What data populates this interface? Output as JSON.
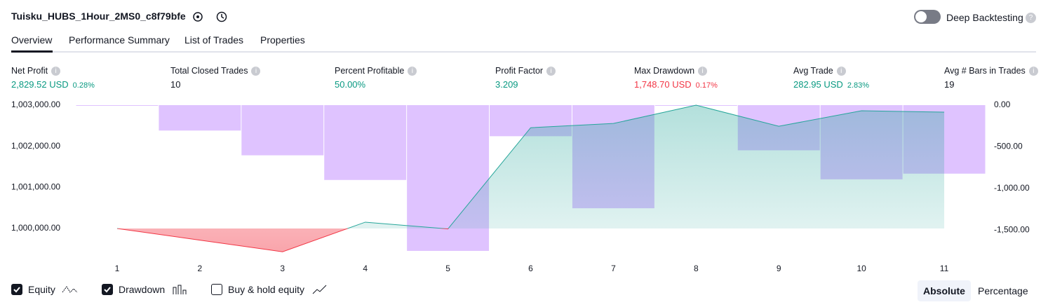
{
  "header": {
    "title": "Tuisku_HUBS_1Hour_2MS0_c8f79bfe",
    "toggle": "Deep Backtesting"
  },
  "tabs": [
    "Overview",
    "Performance Summary",
    "List of Trades",
    "Properties"
  ],
  "metrics": [
    {
      "label": "Net Profit",
      "value": "2,829.52 USD",
      "percent": "0.28%",
      "color": "#089981"
    },
    {
      "label": "Total Closed Trades",
      "value": "10",
      "color": "#131722"
    },
    {
      "label": "Percent Profitable",
      "value": "50.00%",
      "color": "#089981"
    },
    {
      "label": "Profit Factor",
      "value": "3.209",
      "color": "#089981"
    },
    {
      "label": "Max Drawdown",
      "value": "1,748.70 USD",
      "percent": "0.17%",
      "color": "#f23645"
    },
    {
      "label": "Avg Trade",
      "value": "282.95 USD",
      "percent": "2.83%",
      "color": "#089981"
    },
    {
      "label": "Avg # Bars in Trades",
      "value": "19",
      "color": "#131722"
    }
  ],
  "chart_data": {
    "type": "equity-drawdown",
    "x": [
      1,
      2,
      3,
      4,
      5,
      6,
      7,
      8,
      9,
      10,
      11
    ],
    "xlim": [
      0.5,
      11.5
    ],
    "xticks": [
      1,
      2,
      3,
      4,
      5,
      6,
      7,
      8,
      9,
      10,
      11
    ],
    "series": [
      {
        "name": "Equity",
        "color": "#26a69a",
        "negative_color": "#f23645",
        "values": [
          1000000,
          999717,
          999434,
          1000154,
          999990,
          1002451,
          1002554,
          1003000,
          1002486,
          1002863,
          1002829.52
        ]
      },
      {
        "name": "Drawdown",
        "color": "#d9b8ff",
        "axis": "y2",
        "values": [
          0,
          -305,
          -602,
          -898,
          -1748.7,
          -373,
          -1237,
          0,
          -542,
          -890,
          -822
        ]
      }
    ],
    "legend_extra": "Buy & hold equity",
    "ylim": [
      999250,
      1003000
    ],
    "yticks": [
      {
        "value": 1000000,
        "label": "1,000,000.00"
      },
      {
        "value": 1001000,
        "label": "1,001,000.00"
      },
      {
        "value": 1002000,
        "label": "1,002,000.00"
      },
      {
        "value": 1003000,
        "label": "1,003,000.00"
      }
    ],
    "y2lim": [
      -1850,
      0
    ],
    "y2ticks": [
      {
        "value": 0,
        "label": "0.00"
      },
      {
        "value": -500,
        "label": "-500.00"
      },
      {
        "value": -1000,
        "label": "-1,000.00"
      },
      {
        "value": -1500,
        "label": "-1,500.00"
      }
    ]
  },
  "modes": [
    "Absolute",
    "Percentage"
  ]
}
